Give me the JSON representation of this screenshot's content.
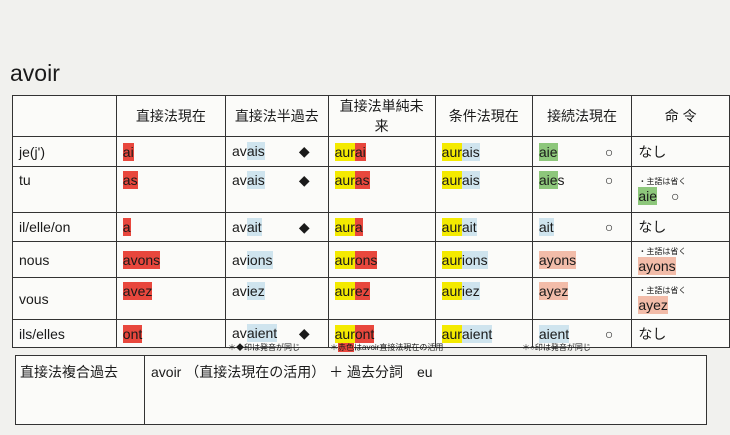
{
  "title": "avoir",
  "headers": [
    "",
    "直接法現在",
    "直接法半過去",
    "直接法単純未来",
    "条件法現在",
    "接続法現在",
    "命 令"
  ],
  "colors": {
    "red": "#e8473d",
    "yellow": "#f4ea00",
    "blue": "#cfe4ee",
    "green": "#8dc77b",
    "pink": "#f2bca9"
  },
  "rows": [
    {
      "pronoun": "je(j')",
      "cells": [
        {
          "segs": [
            [
              "ai",
              "red"
            ]
          ]
        },
        {
          "segs": [
            [
              "av",
              ""
            ],
            [
              "ais",
              "blue"
            ]
          ],
          "mark": "◆"
        },
        {
          "segs": [
            [
              "aur",
              "yellow"
            ],
            [
              "ai",
              "red"
            ]
          ]
        },
        {
          "segs": [
            [
              "aur",
              "yellow"
            ],
            [
              "ais",
              "blue"
            ]
          ]
        },
        {
          "segs": [
            [
              "aie",
              "green"
            ]
          ],
          "mark": "○"
        },
        {
          "segs": [
            [
              "なし",
              ""
            ]
          ]
        }
      ]
    },
    {
      "pronoun": "tu",
      "cells": [
        {
          "segs": [
            [
              "as",
              "red"
            ]
          ]
        },
        {
          "segs": [
            [
              "av",
              ""
            ],
            [
              "ais",
              "blue"
            ]
          ],
          "mark": "◆"
        },
        {
          "segs": [
            [
              "aur",
              "yellow"
            ],
            [
              "as",
              "red"
            ]
          ]
        },
        {
          "segs": [
            [
              "aur",
              "yellow"
            ],
            [
              "ais",
              "blue"
            ]
          ]
        },
        {
          "segs": [
            [
              "aie",
              "green"
            ],
            [
              "s",
              ""
            ]
          ],
          "mark": "○"
        },
        {
          "note": "・主語は省く",
          "segs": [
            [
              "aie",
              "green"
            ]
          ],
          "mark": "○"
        }
      ]
    },
    {
      "pronoun": "il/elle/on",
      "cells": [
        {
          "segs": [
            [
              "a",
              "red"
            ]
          ]
        },
        {
          "segs": [
            [
              "av",
              ""
            ],
            [
              "ait",
              "blue"
            ]
          ],
          "mark": "◆"
        },
        {
          "segs": [
            [
              "aur",
              "yellow"
            ],
            [
              "a",
              "red"
            ]
          ]
        },
        {
          "segs": [
            [
              "aur",
              "yellow"
            ],
            [
              "ait",
              "blue"
            ]
          ]
        },
        {
          "segs": [
            [
              "ait",
              "blue"
            ]
          ],
          "mark": "○"
        },
        {
          "segs": [
            [
              "なし",
              ""
            ]
          ]
        }
      ]
    },
    {
      "pronoun": "nous",
      "cells": [
        {
          "segs": [
            [
              "avons",
              "red"
            ]
          ]
        },
        {
          "segs": [
            [
              "av",
              ""
            ],
            [
              "ions",
              "blue"
            ]
          ]
        },
        {
          "segs": [
            [
              "aur",
              "yellow"
            ],
            [
              "ons",
              "red"
            ]
          ]
        },
        {
          "segs": [
            [
              "aur",
              "yellow"
            ],
            [
              "ions",
              "blue"
            ]
          ]
        },
        {
          "segs": [
            [
              "ayons",
              "pink"
            ]
          ]
        },
        {
          "note": "・主語は省く",
          "segs": [
            [
              "ayons",
              "pink"
            ]
          ]
        }
      ]
    },
    {
      "pronoun": "vous",
      "cells": [
        {
          "segs": [
            [
              "avez",
              "red"
            ]
          ]
        },
        {
          "segs": [
            [
              "av",
              ""
            ],
            [
              "iez",
              "blue"
            ]
          ]
        },
        {
          "segs": [
            [
              "aur",
              "yellow"
            ],
            [
              "ez",
              "red"
            ]
          ]
        },
        {
          "segs": [
            [
              "aur",
              "yellow"
            ],
            [
              "iez",
              "blue"
            ]
          ]
        },
        {
          "segs": [
            [
              "ayez",
              "pink"
            ]
          ]
        },
        {
          "note": "・主語は省く",
          "segs": [
            [
              "ayez",
              "pink"
            ]
          ]
        }
      ]
    },
    {
      "pronoun": "ils/elles",
      "cells": [
        {
          "segs": [
            [
              "ont",
              "red"
            ]
          ]
        },
        {
          "segs": [
            [
              "av",
              ""
            ],
            [
              "aient",
              "blue"
            ]
          ],
          "mark": "◆"
        },
        {
          "segs": [
            [
              "aur",
              "yellow"
            ],
            [
              "ont",
              "red"
            ]
          ]
        },
        {
          "segs": [
            [
              "aur",
              "yellow"
            ],
            [
              "aient",
              "blue"
            ]
          ]
        },
        {
          "segs": [
            [
              "aient",
              "blue"
            ]
          ],
          "mark": "○"
        },
        {
          "segs": [
            [
              "なし",
              ""
            ]
          ]
        }
      ]
    }
  ],
  "notes": {
    "diamond": "＊◆印は発音が同じ",
    "red_prefix": "＊",
    "red_word": "赤色",
    "red_rest": "はavoir直接法現在の活用",
    "circle": "＊○印は発音が同じ"
  },
  "compound": {
    "label": "直接法複合過去",
    "value": "avoir （直接法現在の活用） ＋ 過去分詞　eu"
  }
}
